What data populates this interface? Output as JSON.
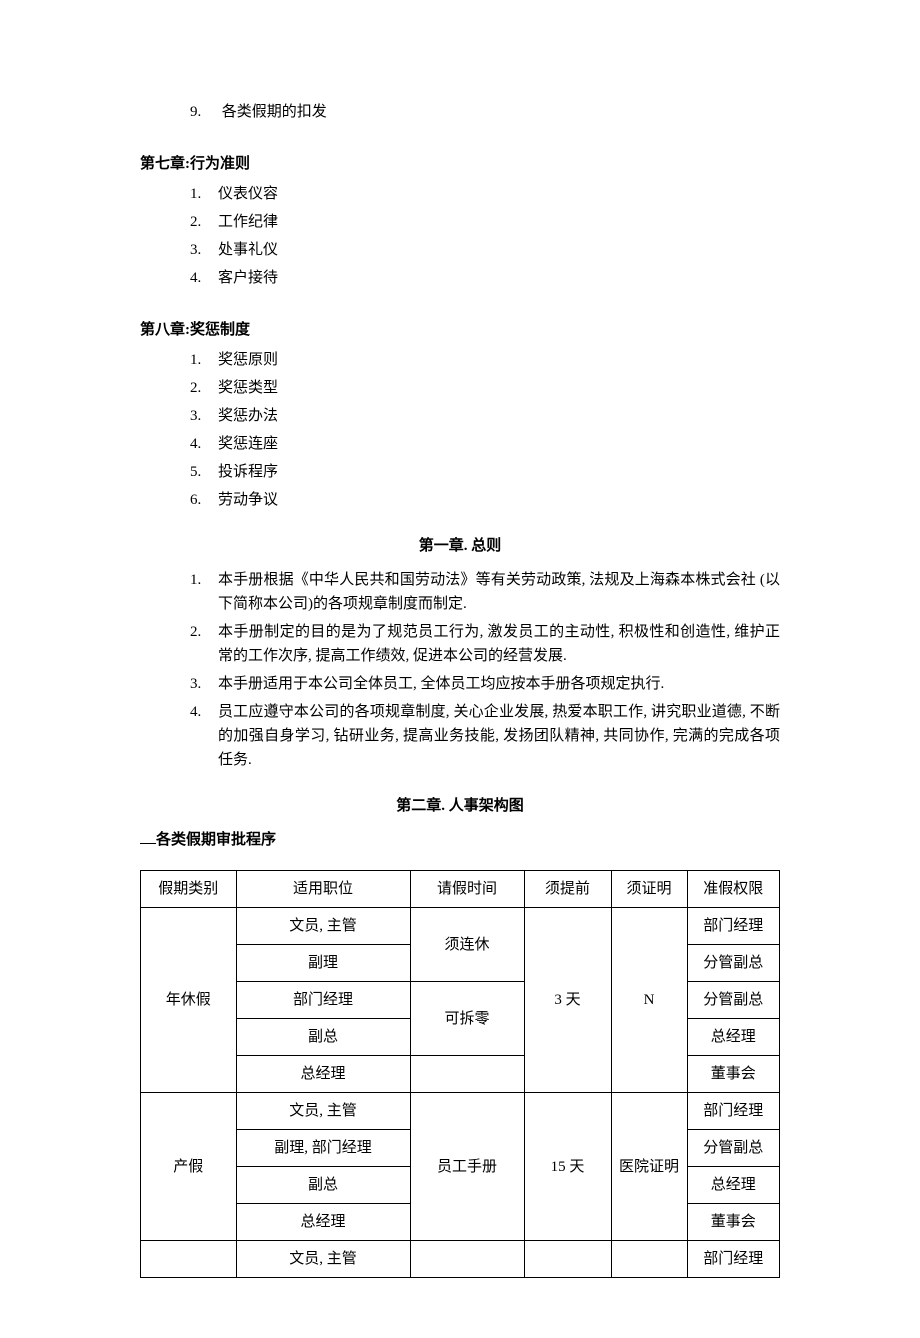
{
  "top_item": {
    "num": "9.",
    "text": "各类假期的扣发"
  },
  "chapter7": {
    "heading": "第七章:行为准则",
    "items": [
      {
        "num": "1.",
        "text": "仪表仪容"
      },
      {
        "num": "2.",
        "text": "工作纪律"
      },
      {
        "num": "3.",
        "text": "处事礼仪"
      },
      {
        "num": "4.",
        "text": "客户接待"
      }
    ]
  },
  "chapter8": {
    "heading": "第八章:奖惩制度",
    "items": [
      {
        "num": "1.",
        "text": "奖惩原则"
      },
      {
        "num": "2.",
        "text": "奖惩类型"
      },
      {
        "num": "3.",
        "text": "奖惩办法"
      },
      {
        "num": "4.",
        "text": "奖惩连座"
      },
      {
        "num": "5.",
        "text": "投诉程序"
      },
      {
        "num": "6.",
        "text": "劳动争议"
      }
    ]
  },
  "chapter1": {
    "title": "第一章.  总则",
    "paras": [
      {
        "num": "1.",
        "text": "本手册根据《中华人民共和国劳动法》等有关劳动政策, 法规及上海森本株式会社 (以下简称本公司)的各项规章制度而制定."
      },
      {
        "num": "2.",
        "text": "本手册制定的目的是为了规范员工行为, 激发员工的主动性, 积极性和创造性, 维护正常的工作次序, 提高工作绩效, 促进本公司的经营发展."
      },
      {
        "num": "3.",
        "text": "本手册适用于本公司全体员工, 全体员工均应按本手册各项规定执行."
      },
      {
        "num": "4.",
        "text": "员工应遵守本公司的各项规章制度, 关心企业发展, 热爱本职工作, 讲究职业道德, 不断的加强自身学习, 钻研业务, 提高业务技能, 发扬团队精神, 共同协作, 完满的完成各项任务."
      }
    ]
  },
  "chapter2": {
    "title": "第二章.  人事架构图"
  },
  "leave_section": {
    "heading": "各类假期审批程序",
    "columns": [
      "假期类别",
      "适用职位",
      "请假时间",
      "须提前",
      "须证明",
      "准假权限"
    ],
    "block1": {
      "category": "年休假",
      "time_a": "须连休",
      "time_b": "可拆零",
      "advance": "3 天",
      "proof": "N",
      "rows": [
        {
          "pos": "文员, 主管",
          "auth": "部门经理"
        },
        {
          "pos": "副理",
          "auth": "分管副总"
        },
        {
          "pos": "部门经理",
          "auth": "分管副总"
        },
        {
          "pos": "副总",
          "auth": "总经理"
        },
        {
          "pos": "总经理",
          "auth": "董事会"
        }
      ]
    },
    "block2": {
      "category": "产假",
      "time": "员工手册",
      "advance": "15 天",
      "proof": "医院证明",
      "rows": [
        {
          "pos": "文员, 主管",
          "auth": "部门经理"
        },
        {
          "pos": "副理, 部门经理",
          "auth": "分管副总"
        },
        {
          "pos": "副总",
          "auth": "总经理"
        },
        {
          "pos": "总经理",
          "auth": "董事会"
        }
      ]
    },
    "block3": {
      "rows": [
        {
          "pos": "文员, 主管",
          "auth": "部门经理"
        }
      ]
    }
  }
}
